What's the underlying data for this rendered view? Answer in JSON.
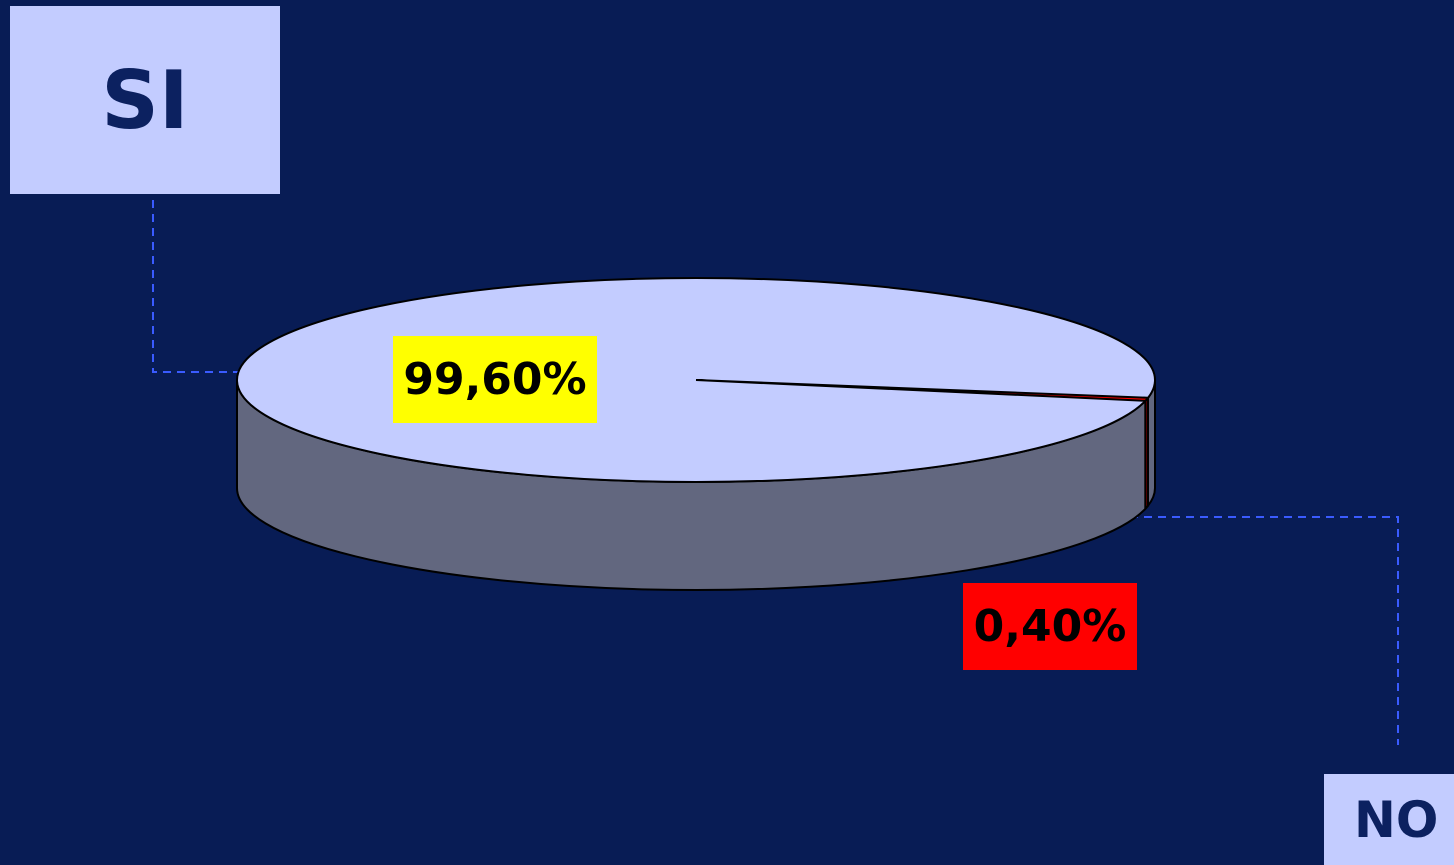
{
  "chart_data": {
    "type": "pie",
    "style": "3d",
    "categories": [
      "SI",
      "NO"
    ],
    "values": [
      99.6,
      0.4
    ],
    "data_labels": [
      "99,60%",
      "0,40%"
    ],
    "colors": {
      "SI_top": "#c3ccff",
      "SI_side": "#62677f",
      "NO_top": "#ff0000",
      "NO_side": "#7f0000",
      "SI_label_bg": "#ffff00",
      "NO_label_bg": "#ff0000",
      "legend_bg": "#c3ccff",
      "background": "#081c55",
      "leader_line": "#3a5bff"
    },
    "title": "",
    "legend": [
      "SI",
      "NO"
    ]
  }
}
